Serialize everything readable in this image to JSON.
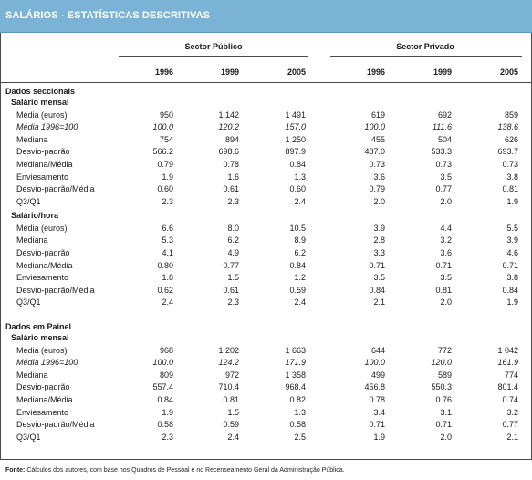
{
  "title": "SALÁRIOS - ESTATÍSTICAS DESCRITIVAS",
  "header": {
    "public_label": "Sector Público",
    "private_label": "Sector Privado",
    "years": [
      "1996",
      "1999",
      "2005"
    ]
  },
  "sections": [
    {
      "title": "Dados seccionais",
      "blocks": [
        {
          "title": "Salário mensal",
          "rows": [
            {
              "label": "Média (euros)",
              "italic": false,
              "values": [
                "950",
                "1 142",
                "1 491",
                "619",
                "692",
                "859"
              ]
            },
            {
              "label": "Média 1996=100",
              "italic": true,
              "values": [
                "100.0",
                "120.2",
                "157.0",
                "100.0",
                "111.6",
                "138.6"
              ]
            },
            {
              "label": "Mediana",
              "italic": false,
              "values": [
                "754",
                "894",
                "1 250",
                "455",
                "504",
                "626"
              ]
            },
            {
              "label": "Desvio-padrão",
              "italic": false,
              "values": [
                "566.2",
                "698.6",
                "897.9",
                "487.0",
                "533.3",
                "693.7"
              ]
            },
            {
              "label": "Mediana/Média",
              "italic": false,
              "values": [
                "0.79",
                "0.78",
                "0.84",
                "0.73",
                "0.73",
                "0.73"
              ]
            },
            {
              "label": "Enviesamento",
              "italic": false,
              "values": [
                "1.9",
                "1.6",
                "1.3",
                "3.6",
                "3.5",
                "3.8"
              ]
            },
            {
              "label": "Desvio-padrão/Média",
              "italic": false,
              "values": [
                "0.60",
                "0.61",
                "0.60",
                "0.79",
                "0.77",
                "0.81"
              ]
            },
            {
              "label": "Q3/Q1",
              "italic": false,
              "values": [
                "2.3",
                "2.3",
                "2.4",
                "2.0",
                "2.0",
                "1.9"
              ]
            }
          ]
        },
        {
          "title": "Salário/hora",
          "rows": [
            {
              "label": "Média (euros)",
              "italic": false,
              "values": [
                "6.6",
                "8.0",
                "10.5",
                "3.9",
                "4.4",
                "5.5"
              ]
            },
            {
              "label": "Mediana",
              "italic": false,
              "values": [
                "5.3",
                "6.2",
                "8.9",
                "2.8",
                "3.2",
                "3.9"
              ]
            },
            {
              "label": "Desvio-padrão",
              "italic": false,
              "values": [
                "4.1",
                "4.9",
                "6.2",
                "3.3",
                "3.6",
                "4.6"
              ]
            },
            {
              "label": "Mediana/Média",
              "italic": false,
              "values": [
                "0.80",
                "0.77",
                "0.84",
                "0.71",
                "0.71",
                "0.71"
              ]
            },
            {
              "label": "Enviesamento",
              "italic": false,
              "values": [
                "1.8",
                "1.5",
                "1.2",
                "3.5",
                "3.5",
                "3.8"
              ]
            },
            {
              "label": "Desvio-padrão/Média",
              "italic": false,
              "values": [
                "0.62",
                "0.61",
                "0.59",
                "0.84",
                "0.81",
                "0.84"
              ]
            },
            {
              "label": "Q3/Q1",
              "italic": false,
              "values": [
                "2.4",
                "2.3",
                "2.4",
                "2.1",
                "2.0",
                "1.9"
              ]
            }
          ]
        }
      ]
    },
    {
      "title": "Dados em Painel",
      "blocks": [
        {
          "title": "Salário mensal",
          "rows": [
            {
              "label": "Média (euros)",
              "italic": false,
              "values": [
                "968",
                "1 202",
                "1 663",
                "644",
                "772",
                "1 042"
              ]
            },
            {
              "label": "Média 1996=100",
              "italic": true,
              "values": [
                "100.0",
                "124.2",
                "171.9",
                "100.0",
                "120.0",
                "161.9"
              ]
            },
            {
              "label": "Mediana",
              "italic": false,
              "values": [
                "809",
                "972",
                "1 358",
                "499",
                "589",
                "774"
              ]
            },
            {
              "label": "Desvio-padrão",
              "italic": false,
              "values": [
                "557.4",
                "710.4",
                "968.4",
                "456.8",
                "550.3",
                "801.4"
              ]
            },
            {
              "label": "Mediana/Média",
              "italic": false,
              "values": [
                "0.84",
                "0.81",
                "0.82",
                "0.78",
                "0.76",
                "0.74"
              ]
            },
            {
              "label": "Enviesamento",
              "italic": false,
              "values": [
                "1.9",
                "1.5",
                "1.3",
                "3.4",
                "3.1",
                "3.2"
              ]
            },
            {
              "label": "Desvio-padrão/Média",
              "italic": false,
              "values": [
                "0.58",
                "0.59",
                "0.58",
                "0.71",
                "0.71",
                "0.77"
              ]
            },
            {
              "label": "Q3/Q1",
              "italic": false,
              "values": [
                "2.3",
                "2.4",
                "2.5",
                "1.9",
                "2.0",
                "2.1"
              ]
            }
          ]
        }
      ]
    }
  ],
  "footnote": {
    "prefix": "Fonte:",
    "text": " Cálculos dos autores, com base nos Quadros de Pessoal e no Recenseamento Geral da Administração Pública."
  }
}
